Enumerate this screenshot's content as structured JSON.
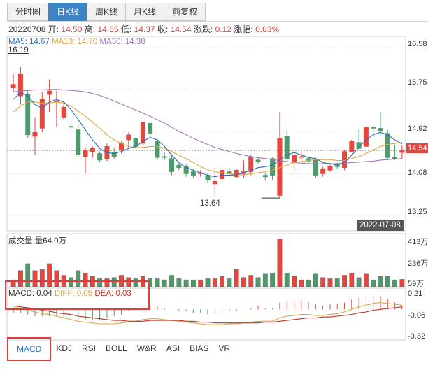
{
  "tabs": [
    {
      "label": "分时图",
      "active": false
    },
    {
      "label": "日K线",
      "active": true
    },
    {
      "label": "周K线",
      "active": false
    },
    {
      "label": "月K线",
      "active": false
    },
    {
      "label": "前复权",
      "active": false
    }
  ],
  "quote": {
    "date": "20220708",
    "open_label": "开:",
    "open": "14.50",
    "high_label": "高:",
    "high": "14.65",
    "low_label": "低:",
    "low": "14.37",
    "close_label": "收:",
    "close": "14.54",
    "change_label": "涨跌:",
    "change": "0.12",
    "pct_label": "涨幅:",
    "pct": "0.83%"
  },
  "ma": {
    "ma5": "MA5: 14.67",
    "ma10": "MA10: 14.70",
    "ma30": "MA30: 14.38",
    "colors": {
      "ma5": "#2e6fb5",
      "ma10": "#e0a545",
      "ma30": "#a07ab8"
    }
  },
  "price_axis": {
    "labels": [
      "16.58",
      "15.75",
      "14.92",
      "14.08",
      "13.25"
    ],
    "current": "14.54"
  },
  "volume_axis": {
    "labels": [
      "413万",
      "236万",
      "59万"
    ]
  },
  "macd_axis": {
    "labels": [
      "0.21",
      "-0.06",
      "-0.32"
    ]
  },
  "annotations": {
    "max": "16.19",
    "min": "13.64",
    "date": "2022-07-08"
  },
  "volume_label": "成交量 量64.0万",
  "macd_label": {
    "macd": "MACD: 0.04",
    "diff": "DIFF: 0.05",
    "dea": "DEA: 0.03"
  },
  "indicator_tabs": [
    "MACD",
    "KDJ",
    "RSI",
    "BOLL",
    "W&R",
    "ASI",
    "BIAS",
    "VR"
  ],
  "colors": {
    "up": "#e6463c",
    "down": "#4e9a6a",
    "diff": "#d4a94e",
    "dea": "#c0312b"
  },
  "chart_data": {
    "type": "candlestick",
    "price_range": [
      12.95,
      16.8
    ],
    "volume_range": [
      0,
      460
    ],
    "macd_range": [
      -0.36,
      0.25
    ],
    "candles": [
      {
        "o": 15.78,
        "c": 15.85,
        "h": 16.05,
        "l": 15.7,
        "v": 60,
        "up": true
      },
      {
        "o": 15.62,
        "c": 16.05,
        "h": 16.19,
        "l": 15.45,
        "v": 140,
        "up": true
      },
      {
        "o": 15.65,
        "c": 14.85,
        "h": 15.75,
        "l": 14.78,
        "v": 200,
        "up": false
      },
      {
        "o": 14.82,
        "c": 14.9,
        "h": 15.2,
        "l": 14.45,
        "v": 140,
        "up": true
      },
      {
        "o": 14.98,
        "c": 15.55,
        "h": 15.7,
        "l": 14.9,
        "v": 150,
        "up": true
      },
      {
        "o": 15.65,
        "c": 15.72,
        "h": 15.95,
        "l": 15.3,
        "v": 200,
        "up": true
      },
      {
        "o": 15.5,
        "c": 15.52,
        "h": 15.72,
        "l": 15.0,
        "v": 140,
        "up": true
      },
      {
        "o": 15.2,
        "c": 15.4,
        "h": 15.48,
        "l": 15.15,
        "v": 100,
        "up": true
      },
      {
        "o": 15.02,
        "c": 15.0,
        "h": 15.1,
        "l": 14.95,
        "v": 80,
        "up": false
      },
      {
        "o": 14.95,
        "c": 14.45,
        "h": 15.05,
        "l": 14.4,
        "v": 140,
        "up": false
      },
      {
        "o": 14.42,
        "c": 14.55,
        "h": 14.6,
        "l": 14.1,
        "v": 120,
        "up": true
      },
      {
        "o": 14.52,
        "c": 14.58,
        "h": 14.62,
        "l": 14.4,
        "v": 90,
        "up": true
      },
      {
        "o": 14.48,
        "c": 14.35,
        "h": 14.52,
        "l": 14.3,
        "v": 70,
        "up": false
      },
      {
        "o": 14.38,
        "c": 14.62,
        "h": 14.68,
        "l": 14.33,
        "v": 70,
        "up": true
      },
      {
        "o": 14.5,
        "c": 14.42,
        "h": 14.6,
        "l": 14.38,
        "v": 80,
        "up": false
      },
      {
        "o": 14.55,
        "c": 14.68,
        "h": 14.72,
        "l": 14.48,
        "v": 100,
        "up": true
      },
      {
        "o": 14.75,
        "c": 14.85,
        "h": 14.9,
        "l": 14.6,
        "v": 80,
        "up": true
      },
      {
        "o": 14.78,
        "c": 14.62,
        "h": 14.8,
        "l": 14.58,
        "v": 70,
        "up": false
      },
      {
        "o": 14.68,
        "c": 15.1,
        "h": 15.12,
        "l": 14.65,
        "v": 90,
        "up": true
      },
      {
        "o": 15.08,
        "c": 14.88,
        "h": 15.12,
        "l": 14.82,
        "v": 70,
        "up": false
      },
      {
        "o": 14.72,
        "c": 14.4,
        "h": 14.75,
        "l": 14.35,
        "v": 70,
        "up": false
      },
      {
        "o": 14.42,
        "c": 14.4,
        "h": 14.5,
        "l": 14.35,
        "v": 60,
        "up": false
      },
      {
        "o": 14.38,
        "c": 14.12,
        "h": 14.45,
        "l": 14.05,
        "v": 100,
        "up": false
      },
      {
        "o": 14.25,
        "c": 14.2,
        "h": 14.3,
        "l": 14.15,
        "v": 70,
        "up": false
      },
      {
        "o": 14.22,
        "c": 14.08,
        "h": 14.28,
        "l": 14.02,
        "v": 60,
        "up": false
      },
      {
        "o": 14.12,
        "c": 14.05,
        "h": 14.18,
        "l": 14.0,
        "v": 60,
        "up": false
      },
      {
        "o": 14.08,
        "c": 14.1,
        "h": 14.15,
        "l": 14.02,
        "v": 60,
        "up": true
      },
      {
        "o": 14.05,
        "c": 13.95,
        "h": 14.1,
        "l": 13.9,
        "v": 70,
        "up": false
      },
      {
        "o": 13.88,
        "c": 13.93,
        "h": 14.2,
        "l": 13.64,
        "v": 70,
        "up": true
      },
      {
        "o": 13.98,
        "c": 14.15,
        "h": 14.2,
        "l": 13.92,
        "v": 90,
        "up": true
      },
      {
        "o": 14.12,
        "c": 14.08,
        "h": 14.2,
        "l": 14.05,
        "v": 70,
        "up": false
      },
      {
        "o": 14.02,
        "c": 14.15,
        "h": 14.18,
        "l": 14.0,
        "v": 150,
        "up": true
      },
      {
        "o": 14.08,
        "c": 14.12,
        "h": 14.35,
        "l": 14.0,
        "v": 80,
        "up": true
      },
      {
        "o": 14.12,
        "c": 14.4,
        "h": 14.45,
        "l": 14.05,
        "v": 100,
        "up": true
      },
      {
        "o": 14.35,
        "c": 14.32,
        "h": 14.4,
        "l": 14.28,
        "v": 80,
        "up": false
      },
      {
        "o": 14.05,
        "c": 14.02,
        "h": 14.1,
        "l": 13.95,
        "v": 110,
        "up": false
      },
      {
        "o": 14.38,
        "c": 14.05,
        "h": 14.42,
        "l": 13.95,
        "v": 120,
        "up": false
      },
      {
        "o": 13.65,
        "c": 14.78,
        "h": 15.3,
        "l": 13.6,
        "v": 413,
        "up": true
      },
      {
        "o": 14.82,
        "c": 14.38,
        "h": 14.92,
        "l": 14.32,
        "v": 120,
        "up": false
      },
      {
        "o": 14.3,
        "c": 14.45,
        "h": 14.52,
        "l": 14.15,
        "v": 90,
        "up": true
      },
      {
        "o": 14.4,
        "c": 14.42,
        "h": 14.5,
        "l": 14.35,
        "v": 60,
        "up": true
      },
      {
        "o": 14.38,
        "c": 14.33,
        "h": 14.42,
        "l": 14.28,
        "v": 60,
        "up": false
      },
      {
        "o": 14.35,
        "c": 14.05,
        "h": 14.4,
        "l": 14.0,
        "v": 110,
        "up": false
      },
      {
        "o": 14.08,
        "c": 14.18,
        "h": 14.22,
        "l": 14.02,
        "v": 80,
        "up": true
      },
      {
        "o": 14.15,
        "c": 14.22,
        "h": 14.28,
        "l": 14.12,
        "v": 70,
        "up": true
      },
      {
        "o": 14.25,
        "c": 14.22,
        "h": 14.3,
        "l": 14.18,
        "v": 70,
        "up": false
      },
      {
        "o": 14.2,
        "c": 14.52,
        "h": 14.55,
        "l": 14.15,
        "v": 100,
        "up": true
      },
      {
        "o": 14.52,
        "c": 14.72,
        "h": 14.75,
        "l": 14.5,
        "v": 120,
        "up": true
      },
      {
        "o": 14.7,
        "c": 14.58,
        "h": 14.95,
        "l": 14.55,
        "v": 80,
        "up": false
      },
      {
        "o": 14.62,
        "c": 15.0,
        "h": 15.08,
        "l": 14.6,
        "v": 110,
        "up": true
      },
      {
        "o": 15.0,
        "c": 14.98,
        "h": 15.08,
        "l": 14.8,
        "v": 60,
        "up": false
      },
      {
        "o": 14.98,
        "c": 14.92,
        "h": 15.3,
        "l": 14.85,
        "v": 90,
        "up": false
      },
      {
        "o": 14.88,
        "c": 14.4,
        "h": 14.95,
        "l": 14.35,
        "v": 90,
        "up": false
      },
      {
        "o": 14.4,
        "c": 14.38,
        "h": 14.65,
        "l": 14.35,
        "v": 60,
        "up": false
      },
      {
        "o": 14.5,
        "c": 14.54,
        "h": 14.65,
        "l": 14.37,
        "v": 64,
        "up": true
      }
    ],
    "ma5": [
      15.55,
      15.7,
      15.62,
      15.45,
      15.38,
      15.5,
      15.55,
      15.5,
      15.35,
      15.15,
      14.95,
      14.75,
      14.58,
      14.5,
      14.48,
      14.52,
      14.58,
      14.62,
      14.72,
      14.8,
      14.75,
      14.62,
      14.45,
      14.3,
      14.2,
      14.15,
      14.1,
      14.05,
      14.02,
      14.05,
      14.05,
      14.06,
      14.1,
      14.15,
      14.2,
      14.22,
      14.25,
      14.35,
      14.45,
      14.5,
      14.45,
      14.4,
      14.38,
      14.3,
      14.28,
      14.25,
      14.3,
      14.45,
      14.6,
      14.75,
      14.85,
      14.9,
      14.85,
      14.75,
      14.67
    ],
    "ma10": [
      15.3,
      15.42,
      15.5,
      15.5,
      15.48,
      15.48,
      15.5,
      15.48,
      15.42,
      15.32,
      15.22,
      15.1,
      14.98,
      14.85,
      14.75,
      14.68,
      14.62,
      14.6,
      14.6,
      14.62,
      14.62,
      14.58,
      14.52,
      14.45,
      14.38,
      14.3,
      14.22,
      14.16,
      14.12,
      14.1,
      14.08,
      14.06,
      14.06,
      14.08,
      14.1,
      14.12,
      14.15,
      14.2,
      14.25,
      14.3,
      14.32,
      14.34,
      14.36,
      14.36,
      14.36,
      14.34,
      14.34,
      14.38,
      14.42,
      14.48,
      14.55,
      14.62,
      14.66,
      14.68,
      14.7
    ],
    "ma30": [
      15.7,
      15.72,
      15.73,
      15.74,
      15.74,
      15.75,
      15.75,
      15.74,
      15.73,
      15.72,
      15.7,
      15.67,
      15.63,
      15.58,
      15.52,
      15.46,
      15.4,
      15.34,
      15.28,
      15.22,
      15.15,
      15.08,
      15.0,
      14.92,
      14.85,
      14.78,
      14.72,
      14.66,
      14.6,
      14.56,
      14.52,
      14.48,
      14.45,
      14.42,
      14.4,
      14.38,
      14.36,
      14.34,
      14.32,
      14.3,
      14.29,
      14.28,
      14.28,
      14.28,
      14.28,
      14.28,
      14.29,
      14.3,
      14.31,
      14.32,
      14.33,
      14.35,
      14.36,
      14.37,
      14.38
    ],
    "diff": [
      0.02,
      0.01,
      -0.01,
      -0.03,
      -0.05,
      -0.06,
      -0.08,
      -0.1,
      -0.12,
      -0.14,
      -0.15,
      -0.16,
      -0.17,
      -0.17,
      -0.17,
      -0.16,
      -0.15,
      -0.14,
      -0.12,
      -0.11,
      -0.11,
      -0.12,
      -0.13,
      -0.14,
      -0.15,
      -0.16,
      -0.17,
      -0.18,
      -0.18,
      -0.18,
      -0.17,
      -0.17,
      -0.16,
      -0.15,
      -0.14,
      -0.14,
      -0.14,
      -0.1,
      -0.08,
      -0.07,
      -0.06,
      -0.06,
      -0.07,
      -0.07,
      -0.06,
      -0.05,
      -0.03,
      0.0,
      0.03,
      0.05,
      0.07,
      0.08,
      0.07,
      0.06,
      0.05
    ],
    "dea": [
      0.04,
      0.03,
      0.02,
      0.01,
      -0.01,
      -0.02,
      -0.04,
      -0.05,
      -0.06,
      -0.08,
      -0.09,
      -0.1,
      -0.11,
      -0.12,
      -0.13,
      -0.13,
      -0.14,
      -0.14,
      -0.14,
      -0.13,
      -0.13,
      -0.13,
      -0.13,
      -0.13,
      -0.14,
      -0.14,
      -0.15,
      -0.15,
      -0.16,
      -0.16,
      -0.16,
      -0.16,
      -0.16,
      -0.16,
      -0.16,
      -0.15,
      -0.15,
      -0.14,
      -0.13,
      -0.12,
      -0.11,
      -0.1,
      -0.1,
      -0.09,
      -0.09,
      -0.08,
      -0.07,
      -0.06,
      -0.04,
      -0.03,
      -0.01,
      0.0,
      0.01,
      0.02,
      0.03
    ]
  }
}
